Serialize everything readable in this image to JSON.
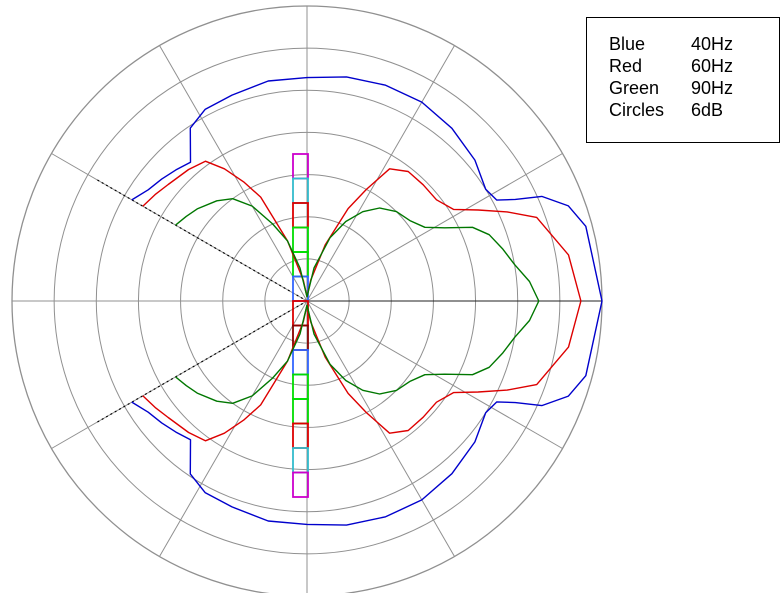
{
  "chart_data": {
    "type": "polar",
    "title": "",
    "grid": true,
    "radial_unit": "dB",
    "rings": 7,
    "ring_step_db": 6,
    "spokes_deg": 30,
    "legend": {
      "placement": "top-right",
      "entries": [
        {
          "name": "Blue",
          "value": "40Hz"
        },
        {
          "name": "Red",
          "value": "60Hz"
        },
        {
          "name": "Green",
          "value": "90Hz"
        },
        {
          "name": "Circles",
          "value": "6dB"
        }
      ]
    },
    "series": [
      {
        "name": "Blue",
        "color": "#0000cc",
        "angle_deg": [
          0,
          15,
          20,
          24,
          26,
          28,
          32,
          40,
          50,
          60,
          70,
          80,
          90,
          100,
          110,
          118,
          124,
          130,
          135,
          140,
          145,
          150
        ],
        "radius_rings": [
          7.0,
          6.85,
          6.6,
          6.1,
          5.5,
          5.1,
          5.0,
          5.2,
          5.35,
          5.45,
          5.45,
          5.4,
          5.3,
          5.3,
          5.2,
          5.15,
          4.95,
          4.3,
          4.4,
          4.5,
          4.6,
          4.8
        ]
      },
      {
        "name": "Red",
        "color": "#dd0000",
        "angle_deg": [
          0,
          10,
          20,
          24,
          28,
          32,
          38,
          45,
          52,
          58,
          62,
          66,
          72,
          80,
          90,
          100,
          108,
          114,
          118,
          122,
          126,
          132,
          140,
          145,
          150
        ],
        "radius_rings": [
          6.5,
          6.3,
          5.8,
          5.2,
          4.6,
          4.1,
          3.9,
          3.9,
          3.9,
          3.7,
          3.0,
          2.4,
          1.4,
          0.5,
          0.1,
          0.5,
          1.5,
          2.7,
          3.2,
          3.7,
          4.1,
          4.2,
          4.3,
          4.4,
          4.5
        ]
      },
      {
        "name": "Green",
        "color": "#007700",
        "angle_deg": [
          0,
          5,
          10,
          15,
          20,
          24,
          28,
          32,
          38,
          45,
          52,
          58,
          64,
          70,
          78,
          90,
          102,
          108,
          114,
          120,
          126,
          132,
          140,
          145,
          150
        ],
        "radius_rings": [
          5.5,
          5.3,
          5.0,
          4.8,
          4.6,
          4.3,
          3.7,
          3.3,
          3.1,
          3.0,
          2.8,
          2.5,
          2.1,
          1.6,
          0.8,
          0.1,
          0.8,
          1.5,
          2.0,
          2.6,
          3.0,
          3.2,
          3.4,
          3.5,
          3.6
        ]
      }
    ],
    "boundary_lines_deg": [
      150,
      210
    ],
    "element_markers": [
      {
        "color": "#cc00cc",
        "count": 1
      },
      {
        "color": "#33bbcc",
        "count": 1
      },
      {
        "color": "#dd0000",
        "count": 1
      },
      {
        "color": "#00dd00",
        "count": 2
      },
      {
        "color": "#3366ff",
        "count": 1
      },
      {
        "color": "#dd0000",
        "count": 1
      },
      {
        "color": "#880000",
        "count": 1
      },
      {
        "color": "#3366ff",
        "count": 1
      },
      {
        "color": "#00dd00",
        "count": 2
      },
      {
        "color": "#dd0000",
        "count": 1
      },
      {
        "color": "#33bbcc",
        "count": 1
      },
      {
        "color": "#cc00cc",
        "count": 1
      }
    ]
  }
}
